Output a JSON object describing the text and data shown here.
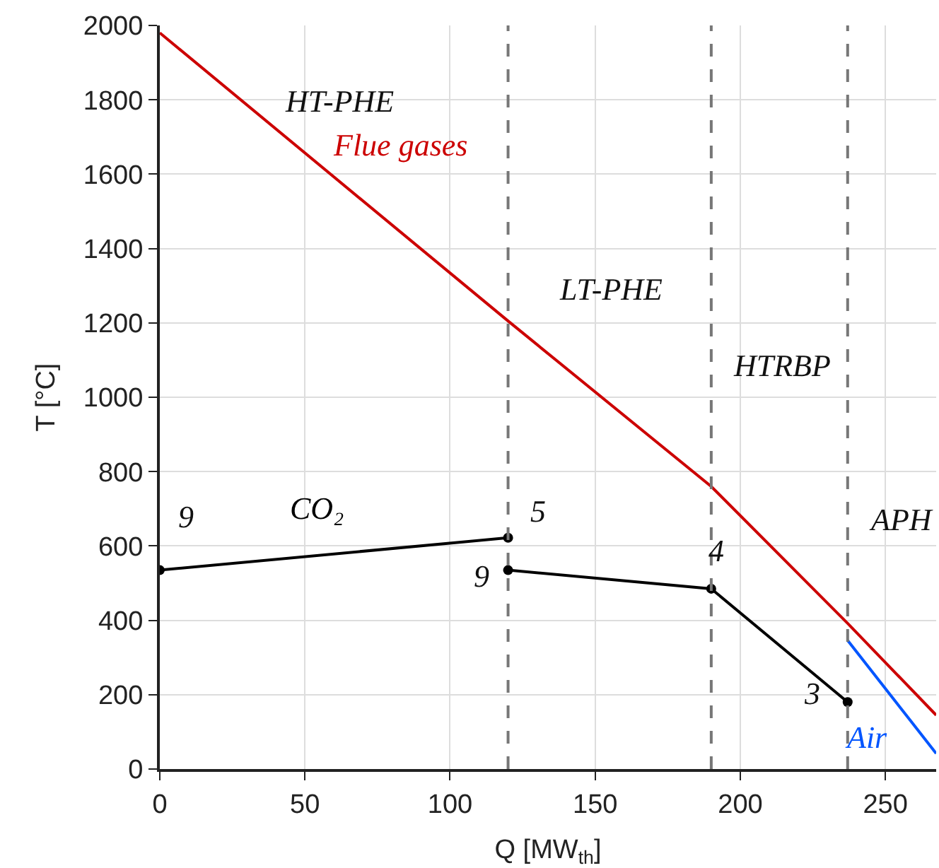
{
  "chart_data": {
    "type": "line",
    "xlabel": "Q [MW$_{th}$]",
    "ylabel": "T [°C]",
    "xlim": [
      0,
      267.5
    ],
    "xticks": [
      0,
      50,
      100,
      150,
      200,
      250
    ],
    "ylim": [
      0,
      2000
    ],
    "yticks": [
      0,
      200,
      400,
      600,
      800,
      1000,
      1200,
      1400,
      1600,
      1800,
      2000
    ],
    "grid": true,
    "legend": false,
    "series": [
      {
        "name": "Flue gases",
        "color": "#cc0000",
        "x": [
          0,
          120,
          190,
          237,
          267.5
        ],
        "values": [
          1980,
          1205,
          760,
          392,
          145
        ],
        "marker": "none"
      },
      {
        "name": "CO₂",
        "color": "#000000",
        "x": [
          0,
          120,
          null,
          120,
          190,
          237
        ],
        "values": [
          535,
          622,
          null,
          535,
          485,
          180
        ],
        "marker": "circle"
      },
      {
        "name": "Air",
        "color": "#0055ff",
        "x": [
          237,
          267.5
        ],
        "values": [
          346,
          42
        ],
        "marker": "none"
      }
    ],
    "ref_lines": [
      {
        "axis": "x",
        "value": 120,
        "color": "#777777",
        "line_style": "dashed"
      },
      {
        "axis": "x",
        "value": 190,
        "color": "#777777",
        "line_style": "dashed"
      },
      {
        "axis": "x",
        "value": 237,
        "color": "#777777",
        "line_style": "dashed"
      }
    ],
    "annotations": [
      "HT-PHE",
      "LT-PHE",
      "HTRBP",
      "APH",
      "9",
      "5",
      "9",
      "4",
      "3"
    ]
  }
}
